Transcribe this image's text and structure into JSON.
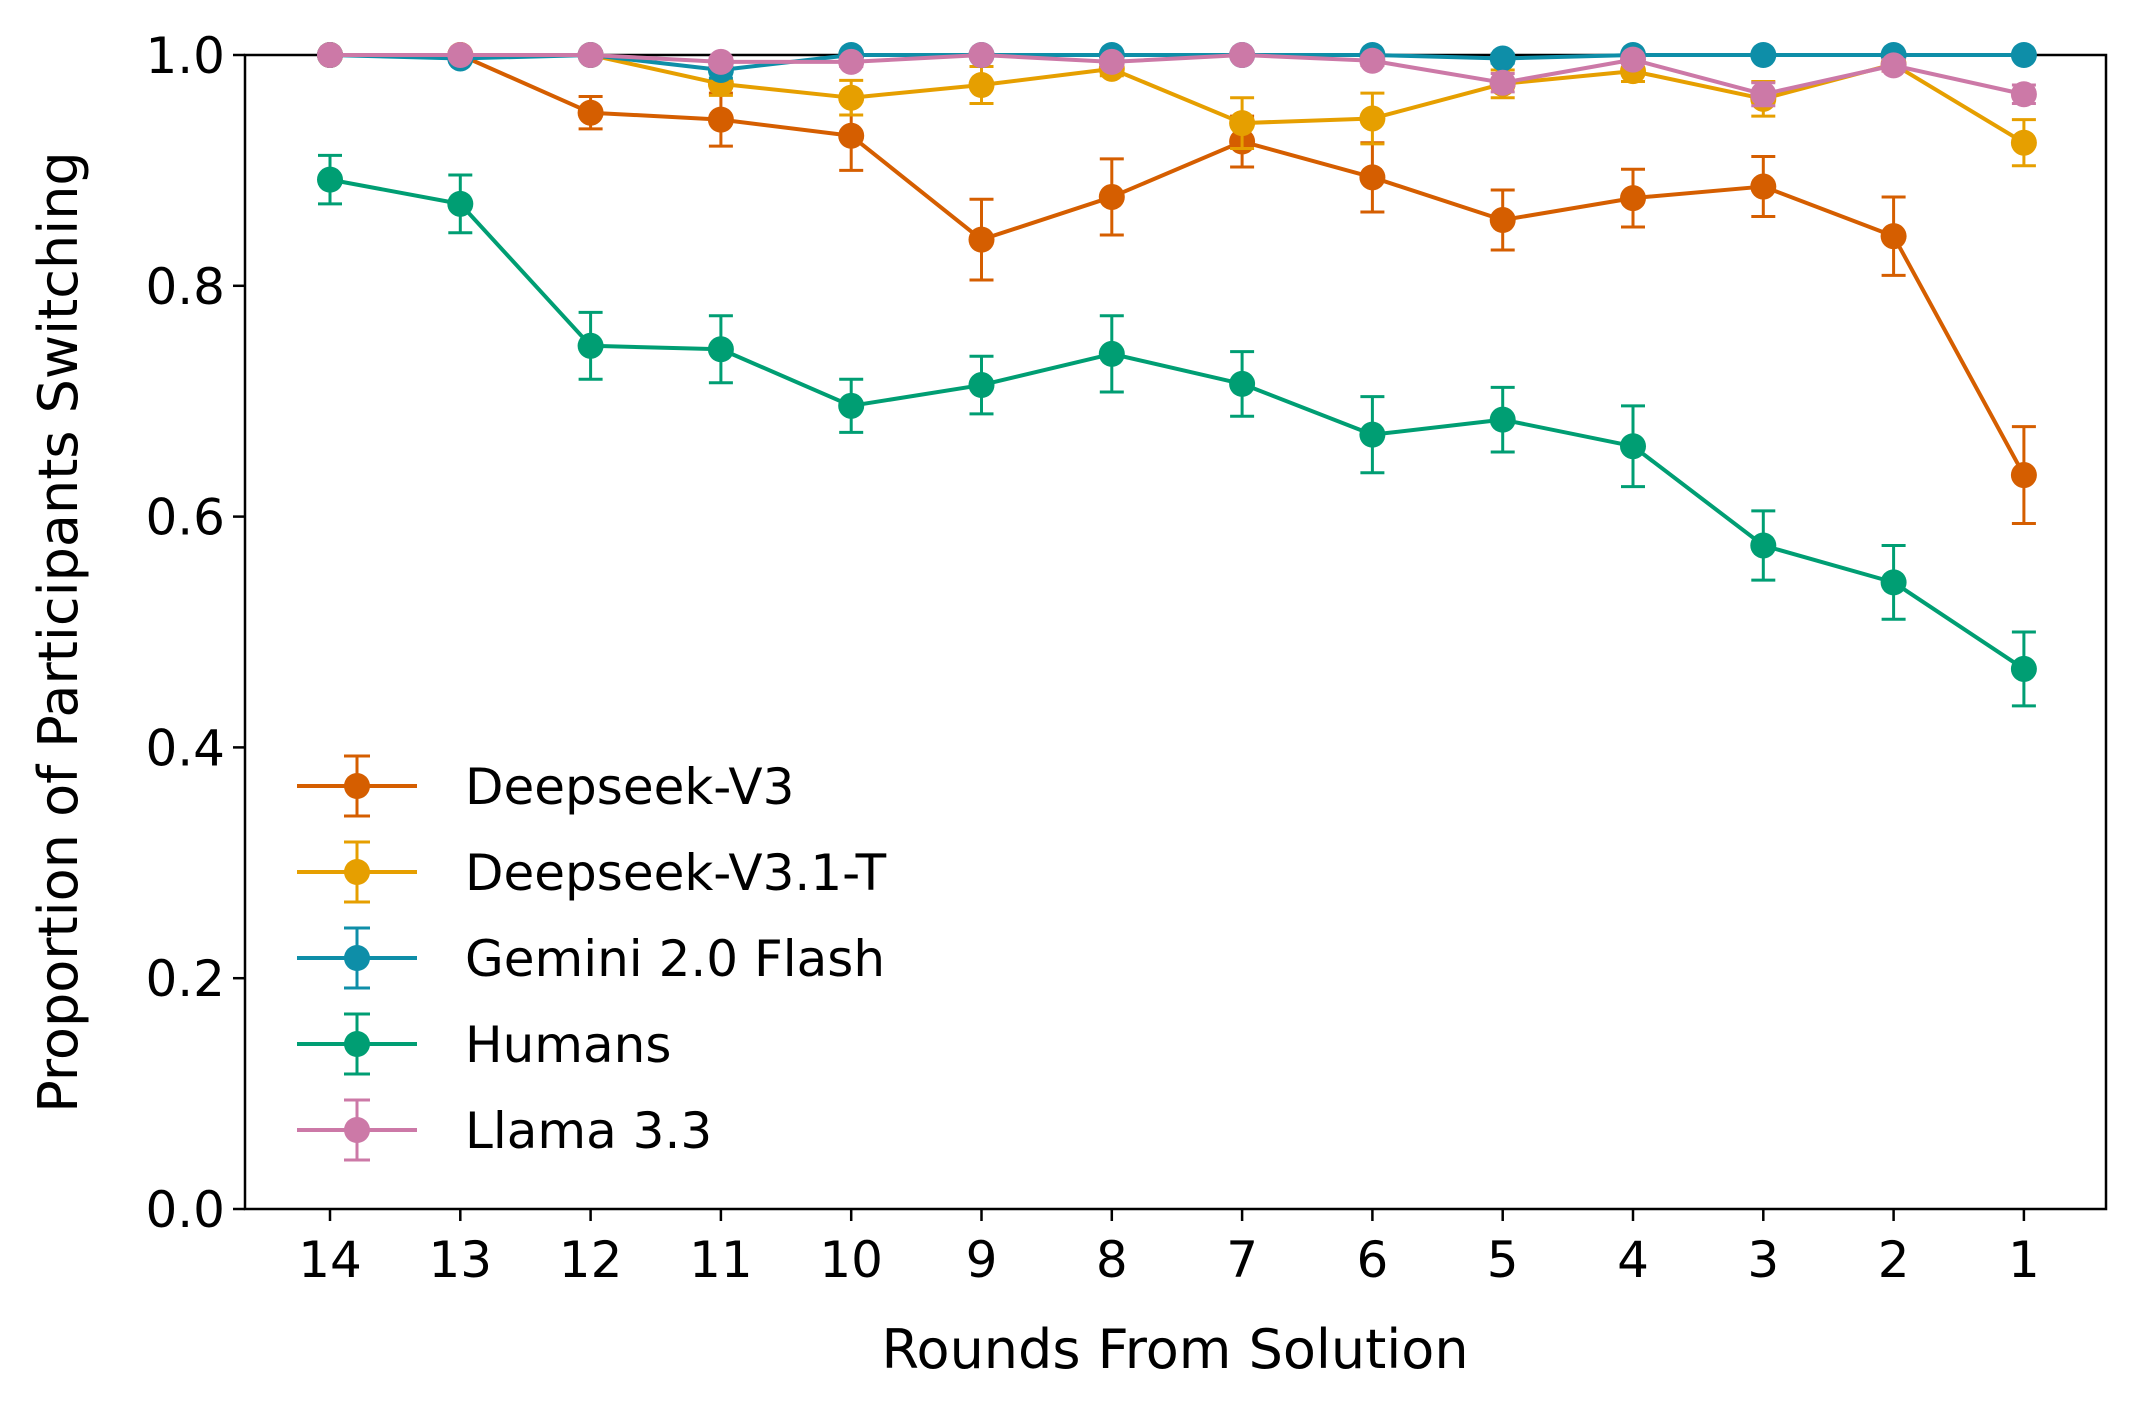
{
  "chart_data": {
    "type": "line",
    "title": "",
    "xlabel": "Rounds From Solution",
    "ylabel": "Proportion of Participants Switching",
    "x": [
      "14",
      "13",
      "12",
      "11",
      "10",
      "9",
      "8",
      "7",
      "6",
      "5",
      "4",
      "3",
      "2",
      "1"
    ],
    "yticks": [
      "0.0",
      "0.2",
      "0.4",
      "0.6",
      "0.8",
      "1.0"
    ],
    "ylim": [
      0,
      1
    ],
    "grid": false,
    "legend_position": "lower-left",
    "error_bars": true,
    "series": [
      {
        "name": "Deepseek-V3",
        "color": "#d55e00",
        "values": [
          1.0,
          1.0,
          0.95,
          0.944,
          0.93,
          0.84,
          0.877,
          0.925,
          0.894,
          0.857,
          0.876,
          0.886,
          0.843,
          0.636
        ],
        "errors": [
          0,
          0,
          0.014,
          0.023,
          0.03,
          0.035,
          0.033,
          0.022,
          0.03,
          0.026,
          0.025,
          0.026,
          0.034,
          0.042
        ]
      },
      {
        "name": "Deepseek-V3.1-T",
        "color": "#e69f00",
        "values": [
          1.0,
          1.0,
          1.0,
          0.975,
          0.963,
          0.974,
          0.988,
          0.941,
          0.945,
          0.975,
          0.986,
          0.962,
          0.992,
          0.924
        ],
        "errors": [
          0,
          0,
          0,
          0.01,
          0.015,
          0.016,
          0.006,
          0.022,
          0.022,
          0.012,
          0.009,
          0.015,
          0.006,
          0.02
        ]
      },
      {
        "name": "Gemini 2.0 Flash",
        "color": "#0e8ea8",
        "values": [
          1.0,
          0.997,
          1.0,
          0.987,
          1.0,
          1.0,
          1.0,
          1.0,
          1.0,
          0.997,
          1.0,
          1.0,
          1.0,
          1.0
        ],
        "errors": [
          0,
          0.003,
          0,
          0.007,
          0,
          0,
          0,
          0,
          0,
          0.004,
          0,
          0,
          0,
          0
        ]
      },
      {
        "name": "Humans",
        "color": "#009e73",
        "values": [
          0.892,
          0.871,
          0.748,
          0.745,
          0.696,
          0.714,
          0.741,
          0.715,
          0.671,
          0.684,
          0.661,
          0.575,
          0.543,
          0.468
        ],
        "errors": [
          0.021,
          0.025,
          0.029,
          0.029,
          0.023,
          0.025,
          0.033,
          0.028,
          0.033,
          0.028,
          0.035,
          0.03,
          0.032,
          0.032
        ]
      },
      {
        "name": "Llama 3.3",
        "color": "#cc79a7",
        "values": [
          1.0,
          1.0,
          1.0,
          0.994,
          0.994,
          1.0,
          0.994,
          1.0,
          0.995,
          0.976,
          0.996,
          0.966,
          0.991,
          0.966
        ],
        "errors": [
          0,
          0,
          0,
          0.004,
          0.004,
          0,
          0.004,
          0,
          0.004,
          0.008,
          0.003,
          0.01,
          0.005,
          0.008
        ]
      }
    ]
  }
}
